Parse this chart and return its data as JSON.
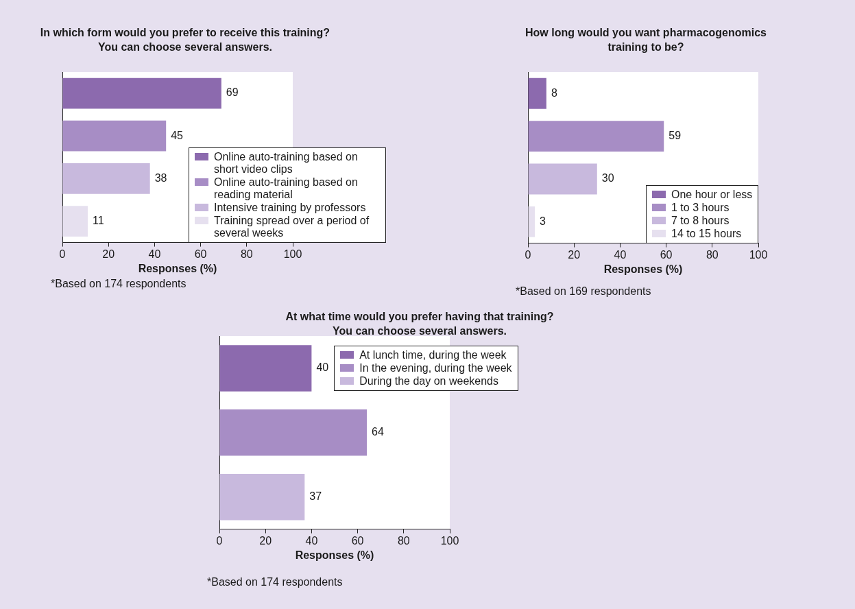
{
  "chart_data": [
    {
      "type": "bar",
      "orientation": "horizontal",
      "title": "In which form would you prefer to receive this training? You can choose several answers.",
      "xlabel": "Responses (%)",
      "categories": [
        null,
        null,
        null,
        null
      ],
      "series": [
        {
          "name": "Online auto-training based on short video clips",
          "color": "#8c6aae",
          "values": [
            69,
            null,
            null,
            null
          ]
        },
        {
          "name": "Online auto-training based on reading material",
          "color": "#a78dc5",
          "values": [
            null,
            45,
            null,
            null
          ]
        },
        {
          "name": "Intensive training by professors",
          "color": "#c8b9dd",
          "values": [
            null,
            null,
            38,
            null
          ]
        },
        {
          "name": "Training spread over a period of several weeks",
          "color": "#e6e0ef",
          "values": [
            null,
            null,
            null,
            11
          ]
        }
      ],
      "xlim": [
        0,
        100
      ],
      "xticks": [
        0,
        20,
        40,
        60,
        80,
        100
      ],
      "data_labels": true,
      "legend": "bottom right",
      "annotations": [
        "*Based on 174 respondents"
      ]
    },
    {
      "type": "bar",
      "orientation": "horizontal",
      "title": "How long would you want pharmacogenomics training to be?",
      "xlabel": "Responses (%)",
      "categories": [
        null,
        null,
        null,
        null
      ],
      "series": [
        {
          "name": "One hour or less",
          "color": "#8c6aae",
          "values": [
            8,
            null,
            null,
            null
          ]
        },
        {
          "name": "1 to 3 hours",
          "color": "#a78dc5",
          "values": [
            null,
            59,
            null,
            null
          ]
        },
        {
          "name": "7 to 8 hours",
          "color": "#c8b9dd",
          "values": [
            null,
            null,
            30,
            null
          ]
        },
        {
          "name": "14 to 15 hours",
          "color": "#e6e0ef",
          "values": [
            null,
            null,
            null,
            3
          ]
        }
      ],
      "xlim": [
        0,
        100
      ],
      "xticks": [
        0,
        20,
        40,
        60,
        80,
        100
      ],
      "data_labels": true,
      "legend": "bottom right",
      "annotations": [
        "*Based on 169 respondents"
      ]
    },
    {
      "type": "bar",
      "orientation": "horizontal",
      "title": "At what time would you prefer having that training? You can choose several answers.",
      "xlabel": "Responses (%)",
      "categories": [
        null,
        null,
        null
      ],
      "series": [
        {
          "name": "At lunch time, during the week",
          "color": "#8c6aae",
          "values": [
            40,
            null,
            null
          ]
        },
        {
          "name": "In the evening, during the week",
          "color": "#a78dc5",
          "values": [
            null,
            64,
            null
          ]
        },
        {
          "name": "During the day on weekends",
          "color": "#c8b9dd",
          "values": [
            null,
            null,
            37
          ]
        }
      ],
      "xlim": [
        0,
        100
      ],
      "xticks": [
        0,
        20,
        40,
        60,
        80,
        100
      ],
      "data_labels": true,
      "legend": "top right",
      "annotations": [
        "*Based on 174 respondents"
      ]
    }
  ]
}
